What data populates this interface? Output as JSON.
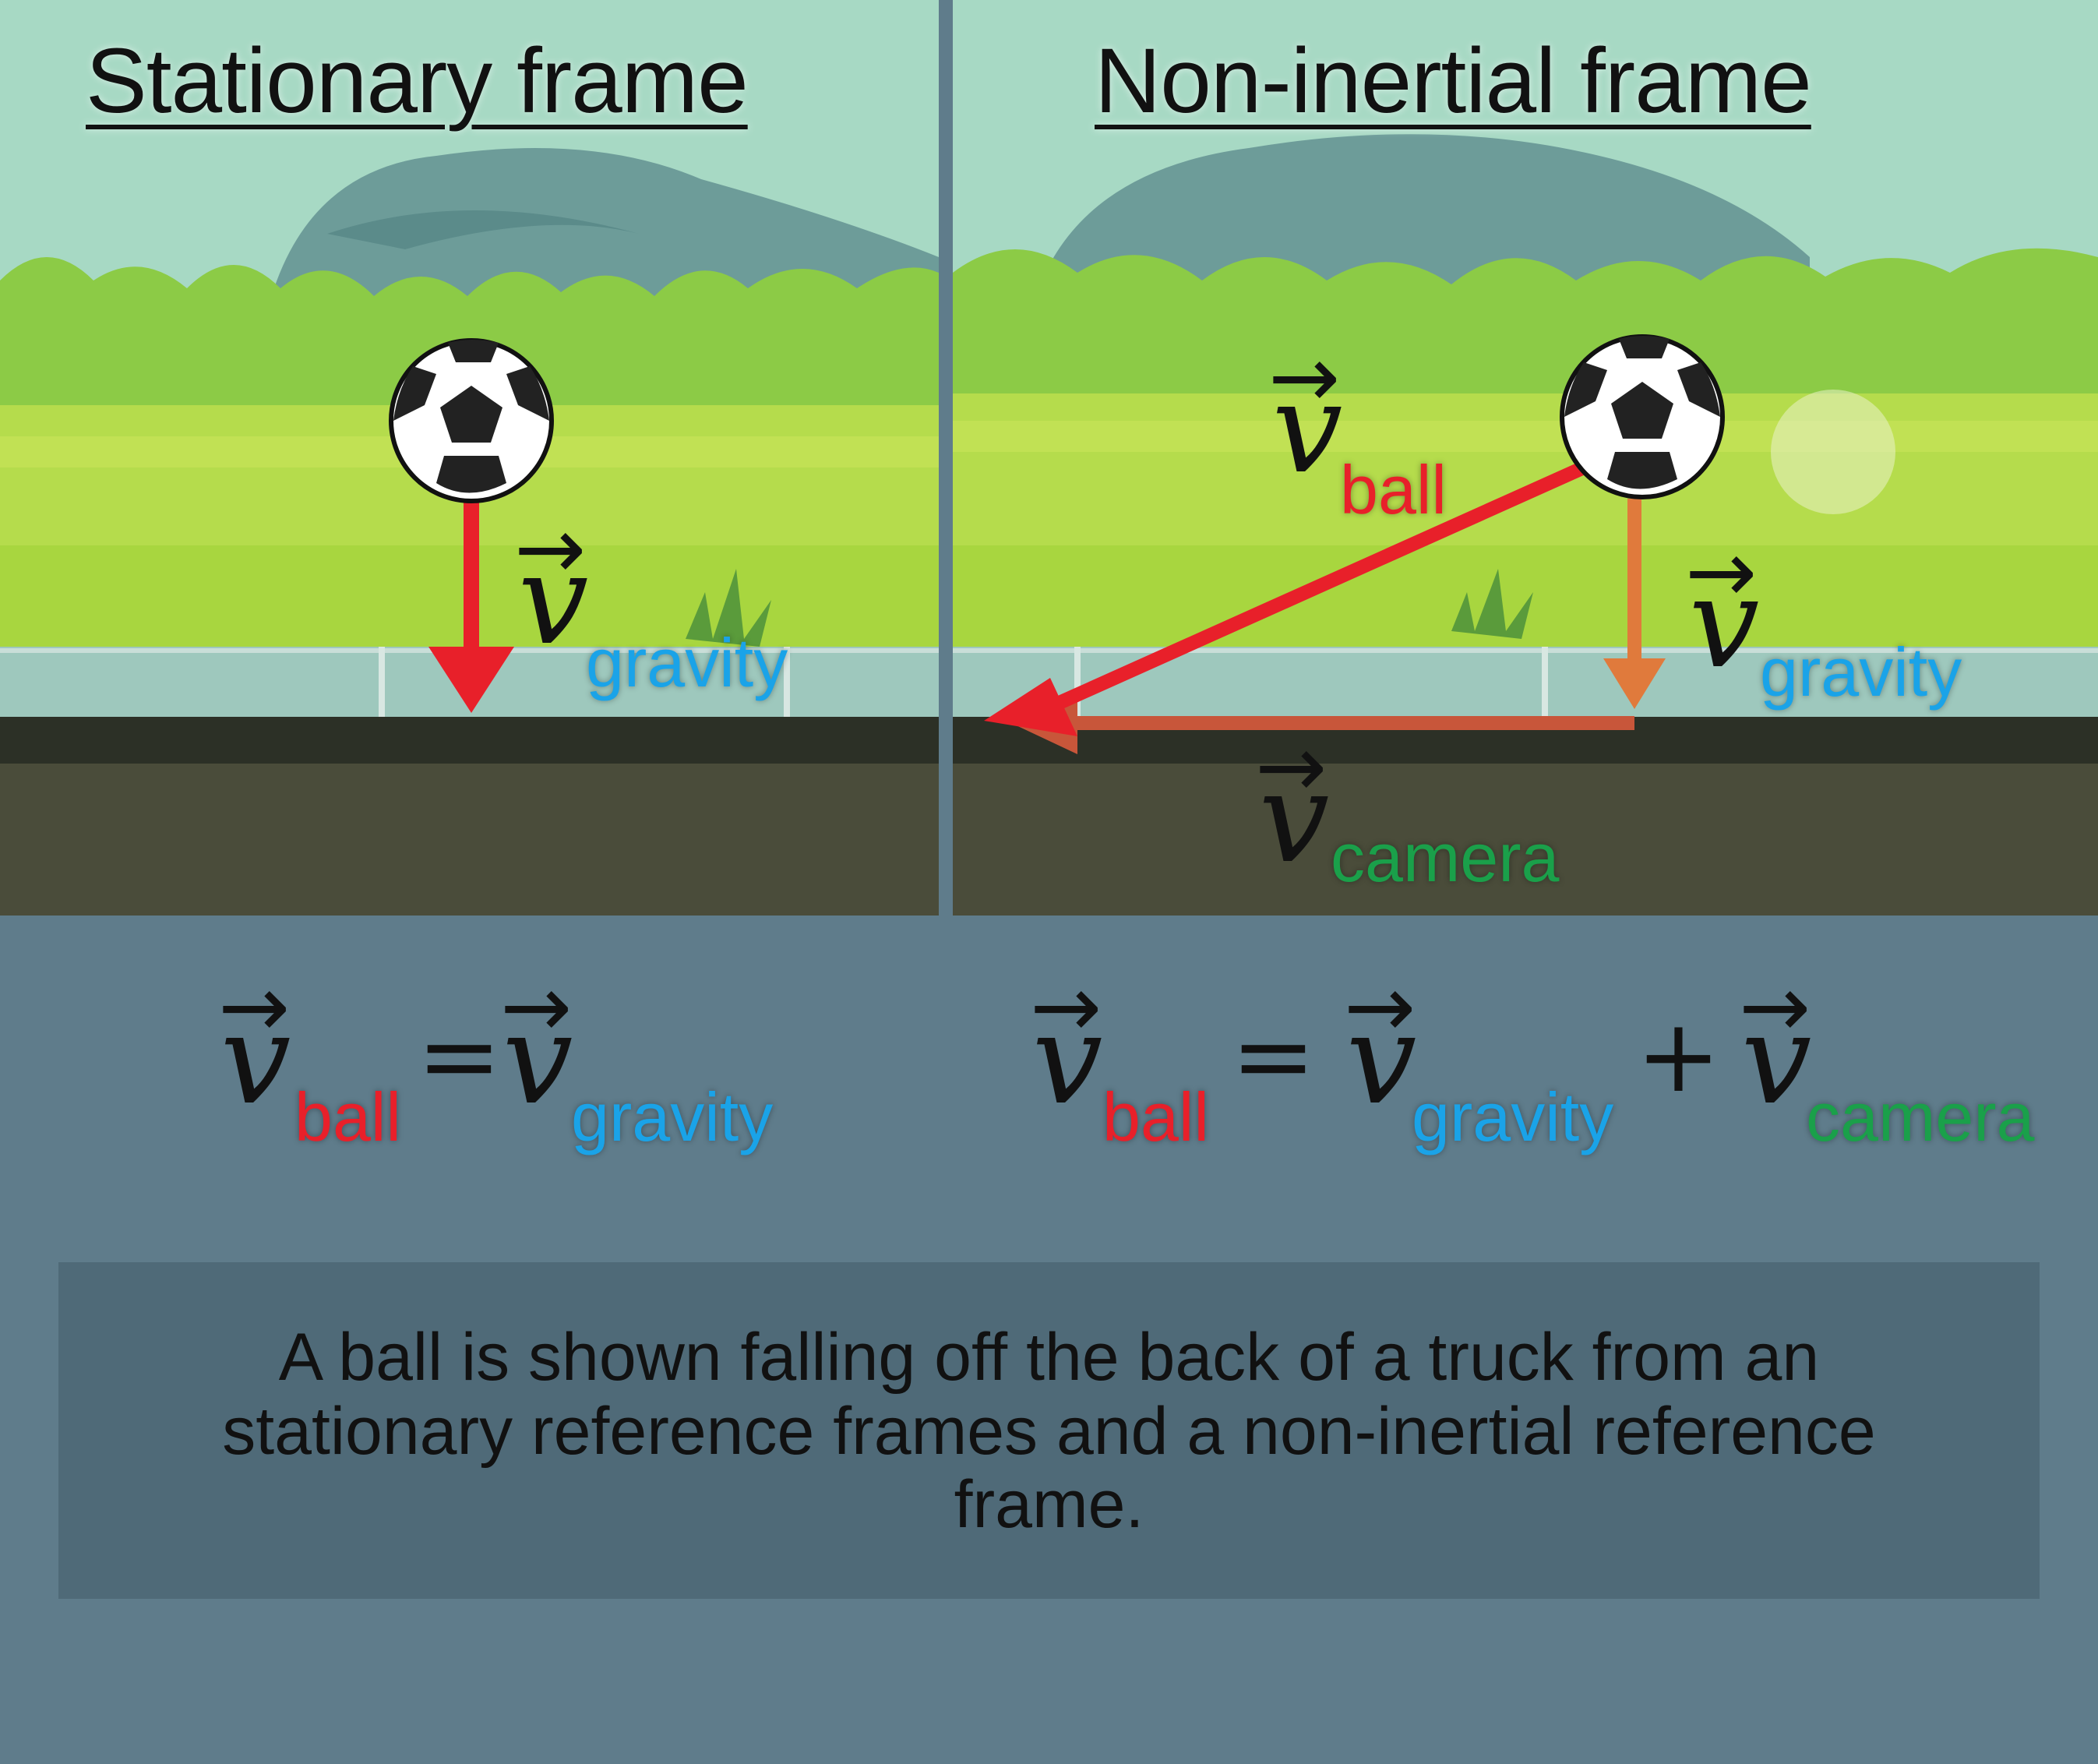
{
  "panels": {
    "left": {
      "title": "Stationary frame"
    },
    "right": {
      "title": "Non-inertial frame"
    }
  },
  "vectors": {
    "symbol": "v",
    "hat": "→",
    "ball": "ball",
    "gravity": "gravity",
    "camera": "camera"
  },
  "equations": {
    "left": {
      "lhs_sub": "ball",
      "equals": "=",
      "rhs_sub": "gravity"
    },
    "right": {
      "lhs_sub": "ball",
      "equals": "=",
      "rhs1_sub": "gravity",
      "plus": "+",
      "rhs2_sub": "camera"
    }
  },
  "caption": "A ball is shown falling off the back of a truck from an stationary reference frames and a non-inertial reference frame.",
  "colors": {
    "ball_arrow": "#e8202a",
    "gravity_label": "#1aa3e8",
    "camera_label": "#1aa04a",
    "component_arrow": "#e07a3c",
    "background": "#5f7c8b"
  }
}
